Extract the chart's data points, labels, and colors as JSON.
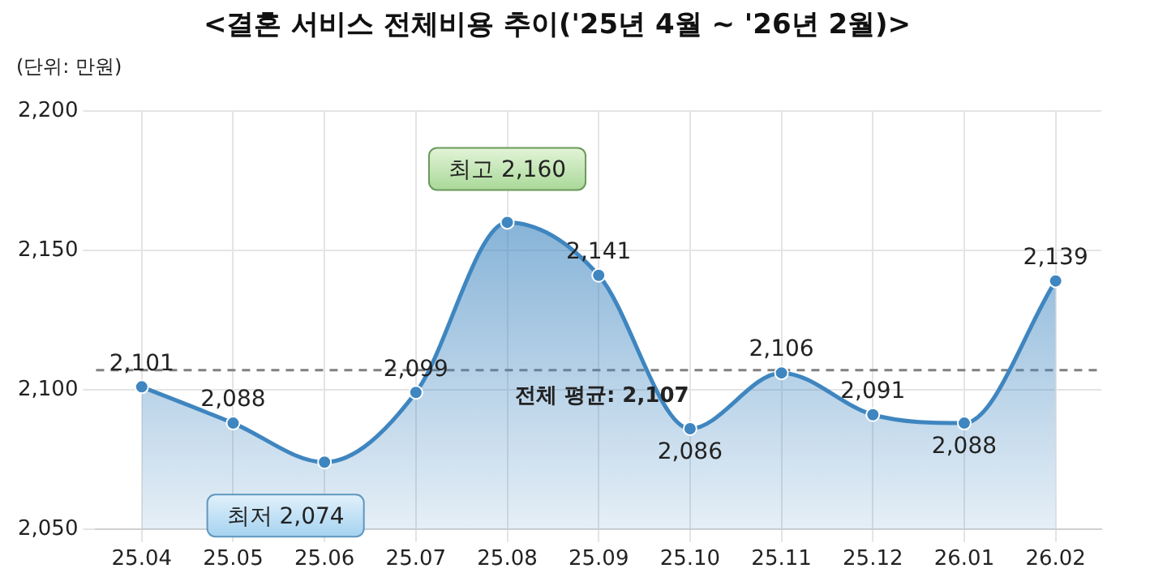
{
  "chart_data": {
    "type": "area",
    "title": "<결혼 서비스 전체비용 추이('25년 4월 ~ '26년 2월)>",
    "categories": [
      "25.04",
      "25.05",
      "25.06",
      "25.07",
      "25.08",
      "25.09",
      "25.10",
      "25.11",
      "25.12",
      "26.01",
      "26.02"
    ],
    "series": [
      {
        "color": "#3f86c0",
        "values": [
          2101,
          2088,
          2074,
          2099,
          2160,
          2141,
          2086,
          2106,
          2091,
          2088,
          2139
        ],
        "value_labels": [
          "2,101",
          "2,088",
          null,
          "2,099",
          null,
          "2,141",
          "2,086",
          "2,106",
          "2,091",
          "2,088",
          "2,139"
        ]
      }
    ],
    "ylim": [
      2050,
      2200
    ],
    "yticks": [
      {
        "value": 2050,
        "label": "2,050"
      },
      {
        "value": 2100,
        "label": "2,100"
      },
      {
        "value": 2150,
        "label": "2,150"
      },
      {
        "value": 2200,
        "label": "2,200"
      }
    ],
    "grid": true,
    "marker": "circle",
    "legend": false,
    "ref_lines": [
      {
        "axis": "y",
        "value": 2107,
        "label": "전체 평균: 2,107",
        "color": "#808080",
        "line_style": "dashed"
      }
    ],
    "annotations": [
      "(단위: 만원)",
      {
        "text": "최고 2,160",
        "x": "25.08",
        "y": 2160
      },
      {
        "text": "최저 2,074",
        "x": "25.06",
        "y": 2074
      }
    ]
  }
}
